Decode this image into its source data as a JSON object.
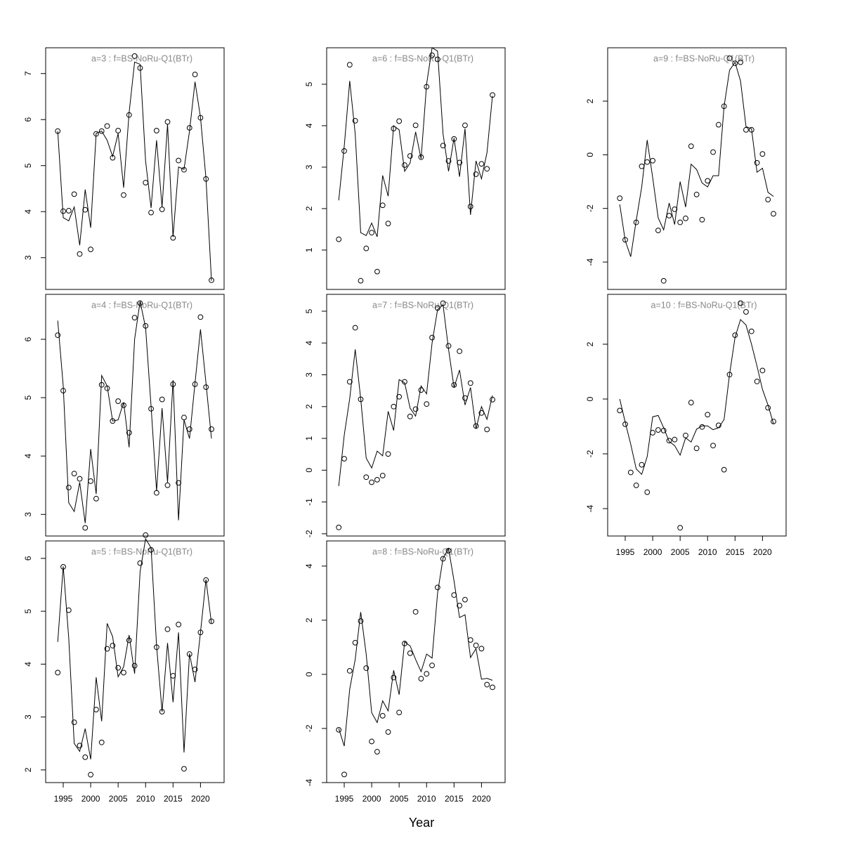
{
  "x_axis_label": "Year",
  "chart_data": [
    {
      "type": "line",
      "title": "a=3  :  f=BS-NoRu-Q1(BTr)",
      "x": [
        1994,
        1995,
        1996,
        1997,
        1998,
        1999,
        2000,
        2001,
        2002,
        2003,
        2004,
        2005,
        2006,
        2007,
        2008,
        2009,
        2010,
        2011,
        2012,
        2013,
        2014,
        2015,
        2016,
        2017,
        2018,
        2019,
        2020,
        2021,
        2022
      ],
      "series": [
        {
          "draw": "points",
          "color": "#000000",
          "values": [
            5.75,
            4.01,
            4.02,
            4.38,
            3.08,
            4.04,
            3.18,
            5.69,
            5.75,
            5.86,
            5.17,
            5.76,
            4.36,
            6.1,
            7.38,
            7.12,
            4.63,
            3.98,
            5.76,
            4.05,
            5.95,
            3.43,
            5.11,
            4.91,
            5.82,
            6.98,
            6.04,
            4.71,
            2.51
          ]
        },
        {
          "draw": "line",
          "color": "#000000",
          "values": [
            5.75,
            3.87,
            3.8,
            4.1,
            3.27,
            4.48,
            3.65,
            5.7,
            5.75,
            5.55,
            5.2,
            5.7,
            4.52,
            6.15,
            7.25,
            7.2,
            5.1,
            4.08,
            5.55,
            4.1,
            5.9,
            3.45,
            4.97,
            4.92,
            5.75,
            6.82,
            6.05,
            4.72,
            2.5
          ]
        }
      ],
      "xlim": [
        1991.8,
        2024.3
      ],
      "ylim": [
        2.31,
        7.56
      ],
      "yticks": [
        3,
        4,
        5,
        6,
        7
      ]
    },
    {
      "type": "line",
      "title": "a=4  :  f=BS-NoRu-Q1(BTr)",
      "x": [
        1994,
        1995,
        1996,
        1997,
        1998,
        1999,
        2000,
        2001,
        2002,
        2003,
        2004,
        2005,
        2006,
        2007,
        2008,
        2009,
        2010,
        2011,
        2012,
        2013,
        2014,
        2015,
        2016,
        2017,
        2018,
        2019,
        2020,
        2021,
        2022
      ],
      "series": [
        {
          "draw": "points",
          "color": "#000000",
          "values": [
            6.07,
            5.12,
            3.46,
            3.7,
            3.61,
            2.77,
            3.57,
            3.27,
            5.22,
            5.16,
            4.6,
            4.94,
            4.87,
            4.4,
            6.37,
            6.62,
            6.23,
            4.81,
            3.37,
            4.97,
            3.5,
            5.23,
            3.54,
            4.66,
            4.46,
            5.23,
            6.38,
            5.18,
            4.46
          ]
        },
        {
          "draw": "line",
          "color": "#000000",
          "values": [
            6.32,
            5.2,
            3.2,
            3.05,
            3.55,
            2.85,
            4.12,
            3.35,
            5.38,
            5.2,
            4.6,
            4.62,
            4.92,
            4.15,
            6.0,
            6.65,
            6.2,
            4.85,
            3.4,
            4.82,
            3.55,
            5.3,
            2.9,
            4.62,
            4.3,
            5.25,
            6.17,
            5.25,
            4.3
          ]
        }
      ],
      "xlim": [
        1991.8,
        2024.3
      ],
      "ylim": [
        2.63,
        6.77
      ],
      "yticks": [
        3,
        4,
        5,
        6
      ]
    },
    {
      "type": "line",
      "title": "a=5  :  f=BS-NoRu-Q1(BTr)",
      "x": [
        1994,
        1995,
        1996,
        1997,
        1998,
        1999,
        2000,
        2001,
        2002,
        2003,
        2004,
        2005,
        2006,
        2007,
        2008,
        2009,
        2010,
        2011,
        2012,
        2013,
        2014,
        2015,
        2016,
        2017,
        2018,
        2019,
        2020,
        2021,
        2022
      ],
      "series": [
        {
          "draw": "points",
          "color": "#000000",
          "values": [
            3.84,
            5.84,
            5.02,
            2.9,
            2.46,
            2.24,
            1.91,
            3.14,
            2.52,
            4.29,
            4.35,
            3.93,
            3.84,
            4.45,
            3.97,
            5.91,
            6.44,
            6.16,
            4.32,
            3.1,
            4.66,
            3.78,
            4.75,
            2.02,
            4.19,
            3.9,
            4.6,
            5.59,
            4.81
          ]
        },
        {
          "draw": "line",
          "color": "#000000",
          "values": [
            4.42,
            5.85,
            4.5,
            2.5,
            2.35,
            2.78,
            2.2,
            3.75,
            2.92,
            4.77,
            4.52,
            3.76,
            3.95,
            4.55,
            3.82,
            5.75,
            6.37,
            6.2,
            4.35,
            3.1,
            4.4,
            3.28,
            4.6,
            2.33,
            4.2,
            3.66,
            4.6,
            5.6,
            4.77
          ]
        }
      ],
      "xlim": [
        1991.8,
        2024.3
      ],
      "ylim": [
        1.76,
        6.33
      ],
      "yticks": [
        2,
        3,
        4,
        5,
        6
      ],
      "xticks": [
        1995,
        2000,
        2005,
        2010,
        2015,
        2020
      ]
    },
    {
      "type": "line",
      "title": "a=6  :  f=BS-NoRu-Q1(BTr)",
      "x": [
        1994,
        1995,
        1996,
        1997,
        1998,
        1999,
        2000,
        2001,
        2002,
        2003,
        2004,
        2005,
        2006,
        2007,
        2008,
        2009,
        2010,
        2011,
        2012,
        2013,
        2014,
        2015,
        2016,
        2017,
        2018,
        2019,
        2020,
        2021,
        2022
      ],
      "series": [
        {
          "draw": "points",
          "color": "#000000",
          "values": [
            1.26,
            3.39,
            5.47,
            4.12,
            0.26,
            1.04,
            1.42,
            0.48,
            2.08,
            1.64,
            3.93,
            4.11,
            3.05,
            3.27,
            4.01,
            3.24,
            4.94,
            5.7,
            5.6,
            3.52,
            3.15,
            3.68,
            3.11,
            4.01,
            2.05,
            2.83,
            3.08,
            2.96,
            4.74
          ]
        },
        {
          "draw": "line",
          "color": "#000000",
          "values": [
            2.2,
            3.5,
            5.08,
            3.8,
            1.42,
            1.35,
            1.65,
            1.32,
            2.8,
            2.3,
            4.0,
            3.9,
            2.9,
            3.1,
            3.85,
            3.2,
            5.0,
            5.88,
            5.8,
            3.8,
            2.9,
            3.7,
            2.77,
            3.93,
            1.85,
            3.15,
            2.72,
            3.35,
            4.72
          ]
        }
      ],
      "xlim": [
        1991.8,
        2024.3
      ],
      "ylim": [
        0.05,
        5.88
      ],
      "yticks": [
        1,
        2,
        3,
        4,
        5
      ]
    },
    {
      "type": "line",
      "title": "a=7  :  f=BS-NoRu-Q1(BTr)",
      "x": [
        1994,
        1995,
        1996,
        1997,
        1998,
        1999,
        2000,
        2001,
        2002,
        2003,
        2004,
        2005,
        2006,
        2007,
        2008,
        2009,
        2010,
        2011,
        2012,
        2013,
        2014,
        2015,
        2016,
        2017,
        2018,
        2019,
        2020,
        2021,
        2022
      ],
      "series": [
        {
          "draw": "points",
          "color": "#000000",
          "values": [
            -1.8,
            0.36,
            2.78,
            4.48,
            2.23,
            -0.22,
            -0.38,
            -0.3,
            -0.17,
            0.51,
            2.0,
            2.31,
            2.78,
            1.69,
            1.92,
            2.52,
            2.08,
            4.17,
            5.1,
            5.25,
            3.91,
            2.68,
            3.74,
            2.27,
            2.74,
            1.39,
            1.8,
            1.28,
            2.22
          ]
        },
        {
          "draw": "line",
          "color": "#000000",
          "values": [
            -0.5,
            1.1,
            2.25,
            3.8,
            2.25,
            0.38,
            0.07,
            0.6,
            0.45,
            1.85,
            1.25,
            2.85,
            2.75,
            1.95,
            1.7,
            2.65,
            2.4,
            4.0,
            5.05,
            5.2,
            3.8,
            2.6,
            3.15,
            2.05,
            2.6,
            1.3,
            2.0,
            1.6,
            2.35
          ]
        }
      ],
      "xlim": [
        1991.8,
        2024.3
      ],
      "ylim": [
        -2.07,
        5.53
      ],
      "yticks": [
        -2,
        -1,
        0,
        1,
        2,
        3,
        4,
        5
      ]
    },
    {
      "type": "line",
      "title": "a=8  :  f=BS-NoRu-Q1(BTr)",
      "x": [
        1994,
        1995,
        1996,
        1997,
        1998,
        1999,
        2000,
        2001,
        2002,
        2003,
        2004,
        2005,
        2006,
        2007,
        2008,
        2009,
        2010,
        2011,
        2012,
        2013,
        2014,
        2015,
        2016,
        2017,
        2018,
        2019,
        2020,
        2021,
        2022
      ],
      "series": [
        {
          "draw": "points",
          "color": "#000000",
          "values": [
            -2.05,
            -3.7,
            0.13,
            1.17,
            1.97,
            0.23,
            -2.48,
            -2.86,
            -1.53,
            -2.13,
            -0.12,
            -1.41,
            1.14,
            0.78,
            2.31,
            -0.16,
            0.02,
            0.33,
            3.21,
            4.27,
            4.57,
            2.93,
            2.54,
            2.76,
            1.27,
            1.07,
            0.95,
            -0.38,
            -0.48
          ]
        },
        {
          "draw": "line",
          "color": "#000000",
          "values": [
            -2.0,
            -2.65,
            -0.55,
            0.55,
            2.3,
            0.75,
            -1.42,
            -1.78,
            -0.98,
            -1.35,
            0.15,
            -0.75,
            1.2,
            1.05,
            0.55,
            0.1,
            0.75,
            0.6,
            3.0,
            4.3,
            4.65,
            3.45,
            2.1,
            2.2,
            0.62,
            0.95,
            -0.18,
            -0.15,
            -0.22
          ]
        }
      ],
      "xlim": [
        1991.8,
        2024.3
      ],
      "ylim": [
        -4.0,
        4.93
      ],
      "yticks": [
        -4,
        -2,
        0,
        2,
        4
      ],
      "xticks": [
        1995,
        2000,
        2005,
        2010,
        2015,
        2020
      ]
    },
    {
      "type": "line",
      "title": "a=9  :  f=BS-NoRu-Q1(BTr)",
      "x": [
        1994,
        1995,
        1996,
        1997,
        1998,
        1999,
        2000,
        2001,
        2002,
        2003,
        2004,
        2005,
        2006,
        2007,
        2008,
        2009,
        2010,
        2011,
        2012,
        2013,
        2014,
        2015,
        2016,
        2017,
        2018,
        2019,
        2020,
        2021,
        2022
      ],
      "series": [
        {
          "draw": "points",
          "color": "#000000",
          "values": [
            -1.62,
            -3.17,
            null,
            -2.52,
            -0.43,
            -0.27,
            -0.22,
            -2.82,
            -4.7,
            -2.27,
            -2.03,
            -2.52,
            -2.37,
            0.32,
            -1.48,
            -2.42,
            -0.97,
            0.1,
            1.12,
            1.81,
            3.6,
            3.41,
            3.45,
            0.93,
            0.93,
            -0.3,
            0.03,
            -1.67,
            -2.2
          ]
        },
        {
          "draw": "line",
          "color": "#000000",
          "values": [
            -1.85,
            -3.2,
            -3.8,
            -2.45,
            -1.2,
            0.55,
            -0.85,
            -2.35,
            -2.8,
            -1.8,
            -2.6,
            -1.0,
            -1.95,
            -0.35,
            -0.55,
            -1.05,
            -1.2,
            -0.78,
            -0.78,
            1.8,
            3.15,
            3.45,
            2.75,
            1.05,
            0.97,
            -0.65,
            -0.5,
            -1.4,
            -1.55
          ]
        }
      ],
      "xlim": [
        1991.8,
        2024.3
      ],
      "ylim": [
        -5.02,
        3.99
      ],
      "yticks": [
        -4,
        -2,
        0,
        2
      ]
    },
    {
      "type": "line",
      "title": "a=10  :  f=BS-NoRu-Q1(BTr)",
      "x": [
        1994,
        1995,
        1996,
        1997,
        1998,
        1999,
        2000,
        2001,
        2002,
        2003,
        2004,
        2005,
        2006,
        2007,
        2008,
        2009,
        2010,
        2011,
        2012,
        2013,
        2014,
        2015,
        2016,
        2017,
        2018,
        2019,
        2020,
        2021,
        2022
      ],
      "series": [
        {
          "draw": "points",
          "color": "#000000",
          "values": [
            -0.42,
            -0.92,
            -2.68,
            -3.15,
            -2.4,
            -3.4,
            -1.23,
            -1.13,
            -1.15,
            -1.52,
            -1.48,
            -4.7,
            -1.33,
            -0.13,
            -1.8,
            -1.02,
            -0.57,
            -1.7,
            -0.96,
            -2.58,
            0.89,
            2.33,
            3.5,
            3.18,
            2.47,
            0.64,
            1.04,
            -0.32,
            -0.82
          ]
        },
        {
          "draw": "line",
          "color": "#000000",
          "values": [
            0.0,
            -0.85,
            -1.65,
            -2.55,
            -2.75,
            -2.1,
            -0.65,
            -0.6,
            -1.05,
            -1.55,
            -1.7,
            -2.05,
            -1.42,
            -1.57,
            -1.1,
            -0.98,
            -0.98,
            -1.12,
            -1.05,
            -0.75,
            0.9,
            2.25,
            2.9,
            2.7,
            2.0,
            1.2,
            0.35,
            -0.22,
            -0.9
          ]
        }
      ],
      "xlim": [
        1991.8,
        2024.3
      ],
      "ylim": [
        -5.0,
        3.82
      ],
      "yticks": [
        -4,
        -2,
        0,
        2
      ],
      "xticks": [
        1995,
        2000,
        2005,
        2010,
        2015,
        2020
      ]
    }
  ]
}
